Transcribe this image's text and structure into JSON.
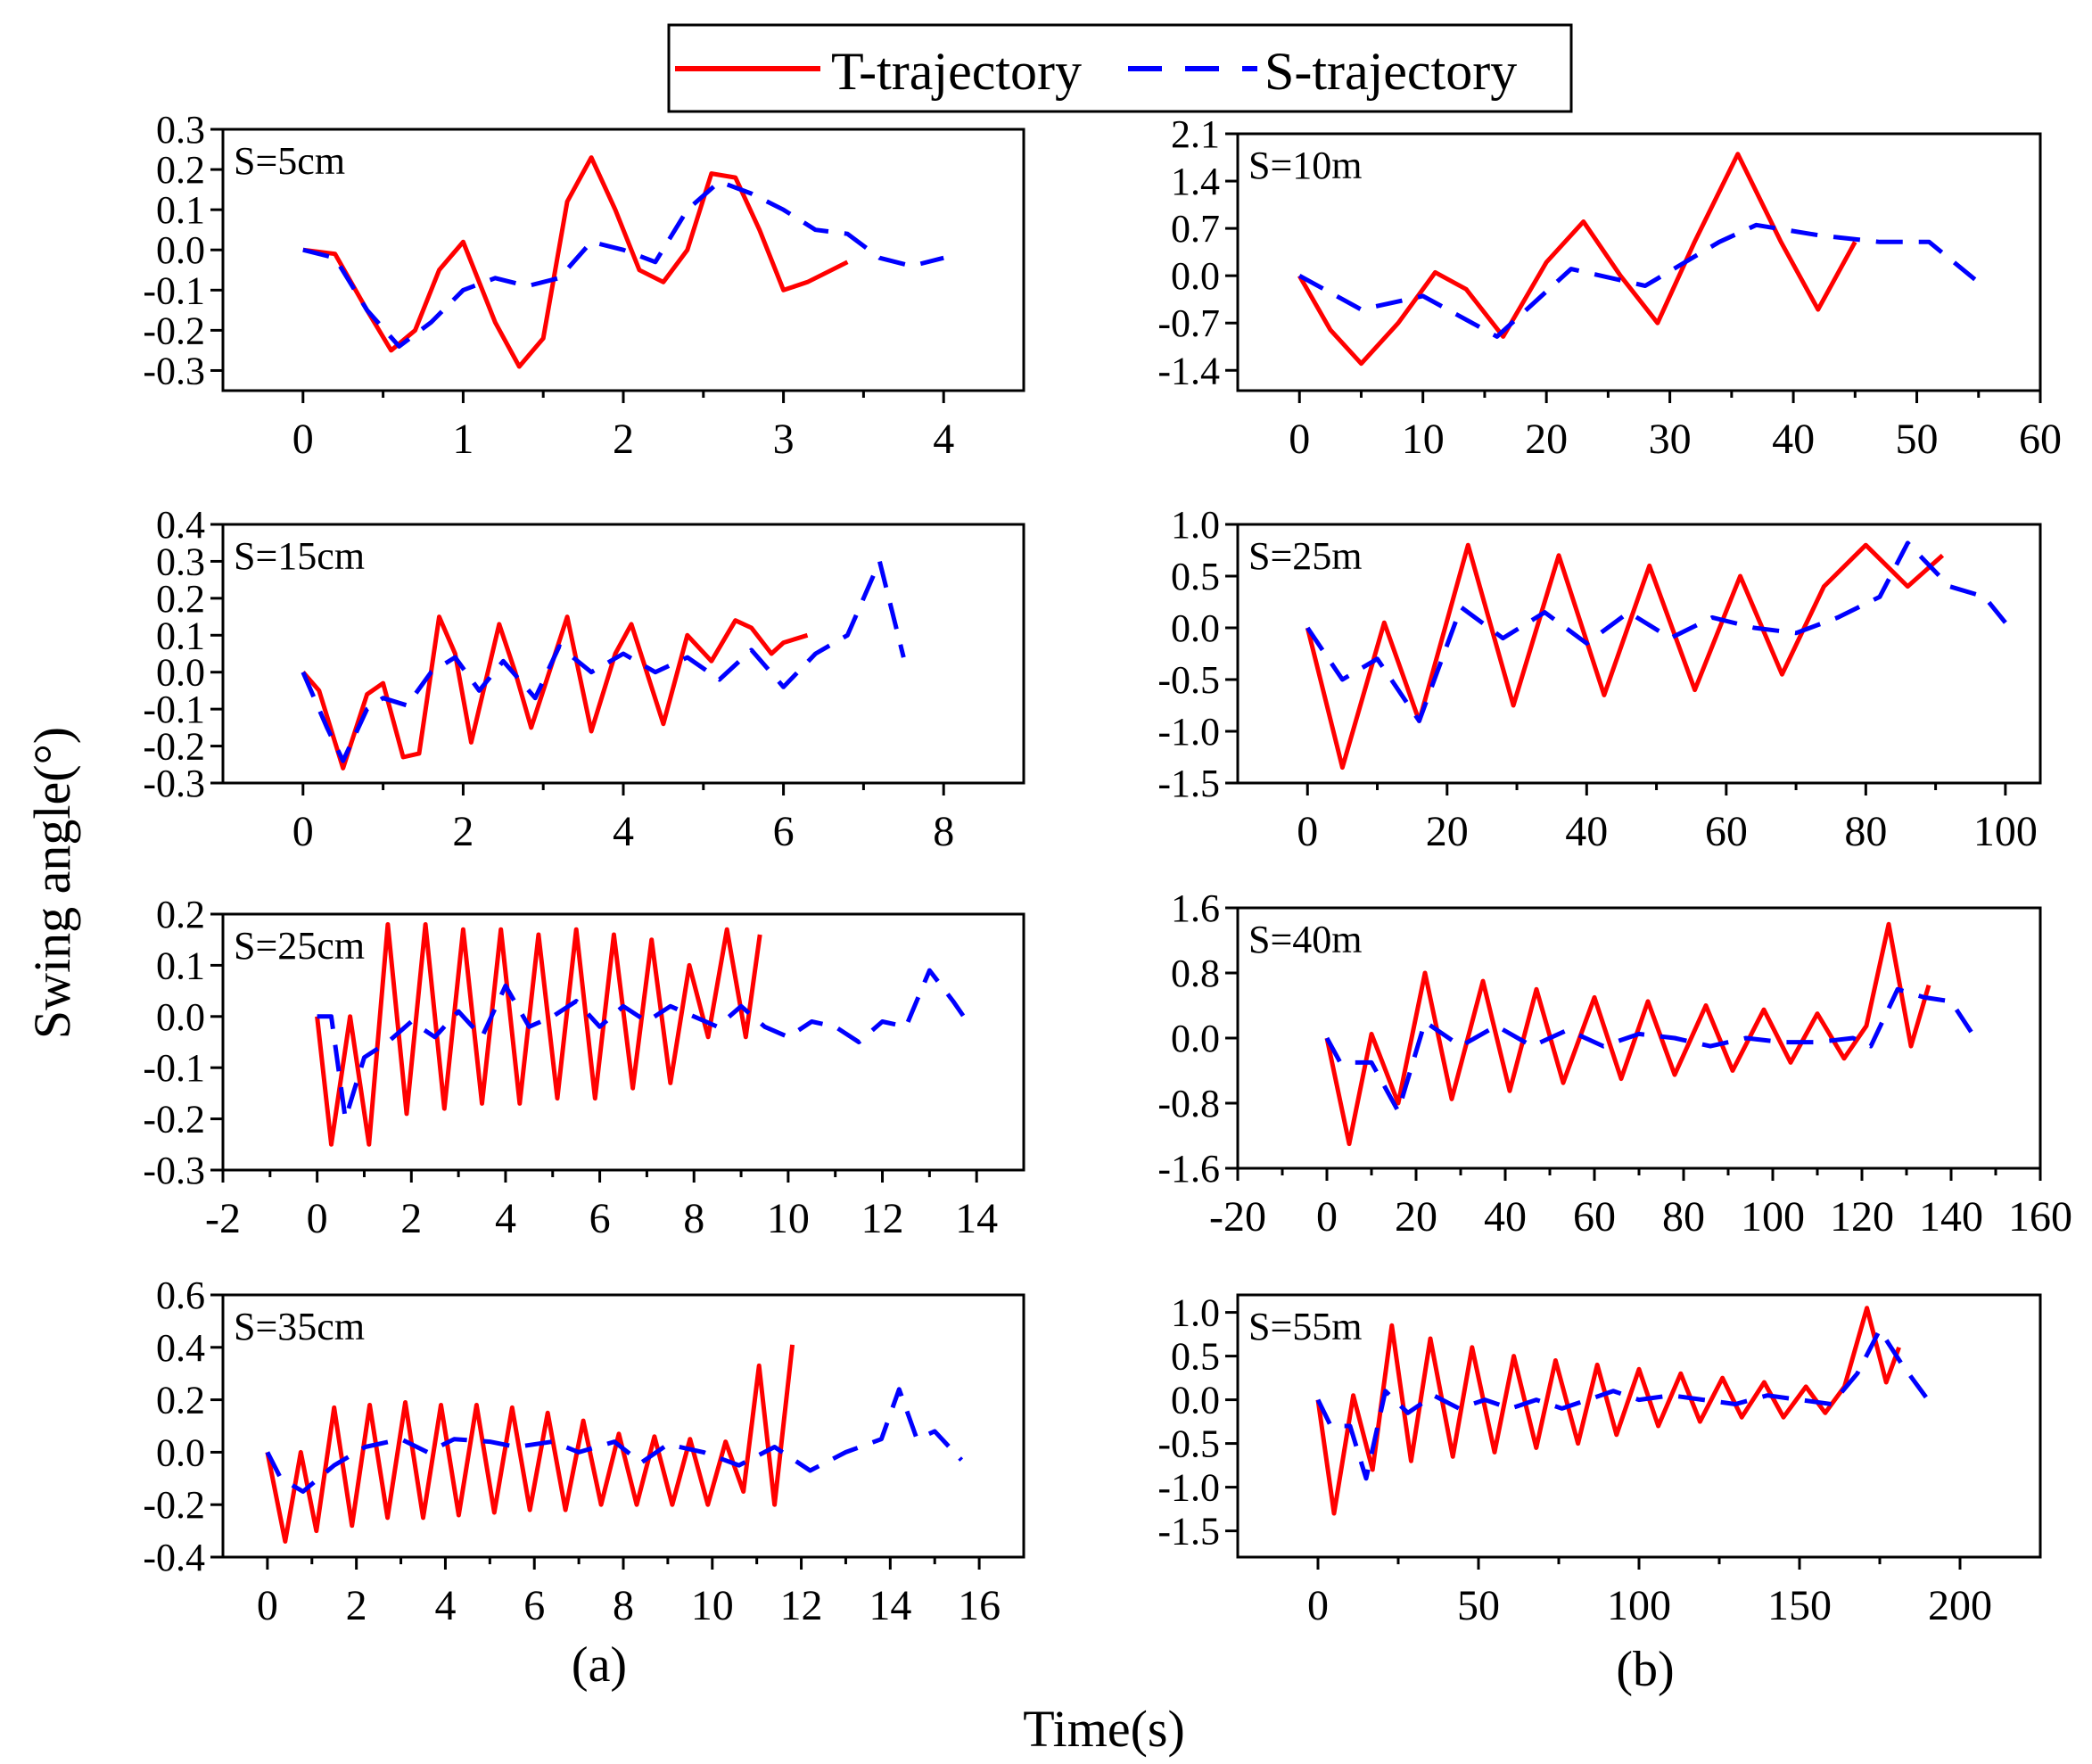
{
  "figure": {
    "ylabel": "Swing angle(°)",
    "xlabel": "Time(s)",
    "column_labels": [
      "(a)",
      "(b)"
    ],
    "legend": [
      "T-trajectory",
      "S-trajectory"
    ],
    "colors": {
      "t_series": "#ff0000",
      "s_series": "#0000ff",
      "axis": "#000000"
    }
  },
  "chart_data": [
    {
      "type": "line",
      "column": "a",
      "row": 1,
      "annotation": "S=5cm",
      "xlim": [
        -0.5,
        4.5
      ],
      "ylim": [
        -0.35,
        0.3
      ],
      "xticks": [
        "0",
        "1",
        "2",
        "3",
        "4"
      ],
      "yticks": [
        "0.3",
        "0.2",
        "0.1",
        "0.0",
        "-0.1",
        "-0.2",
        "-0.3"
      ],
      "grid": false,
      "series": [
        {
          "name": "T-trajectory",
          "x": [
            0,
            0.2,
            0.4,
            0.55,
            0.7,
            0.85,
            1.0,
            1.2,
            1.35,
            1.5,
            1.65,
            1.8,
            1.95,
            2.1,
            2.25,
            2.4,
            2.55,
            2.7,
            2.85,
            3.0,
            3.15,
            3.3,
            3.4
          ],
          "y": [
            0.0,
            -0.01,
            -0.15,
            -0.25,
            -0.2,
            -0.05,
            0.02,
            -0.18,
            -0.29,
            -0.22,
            0.12,
            0.23,
            0.1,
            -0.05,
            -0.08,
            0.0,
            0.19,
            0.18,
            0.05,
            -0.1,
            -0.08,
            -0.05,
            -0.03
          ]
        },
        {
          "name": "S-trajectory",
          "x": [
            0,
            0.2,
            0.4,
            0.6,
            0.8,
            1.0,
            1.2,
            1.4,
            1.6,
            1.8,
            2.0,
            2.2,
            2.4,
            2.6,
            2.8,
            3.0,
            3.2,
            3.4,
            3.6,
            3.8,
            4.0
          ],
          "y": [
            0.0,
            -0.02,
            -0.15,
            -0.24,
            -0.18,
            -0.1,
            -0.07,
            -0.09,
            -0.07,
            0.02,
            0.0,
            -0.03,
            0.1,
            0.17,
            0.14,
            0.1,
            0.05,
            0.04,
            -0.02,
            -0.04,
            -0.02
          ]
        }
      ]
    },
    {
      "type": "line",
      "column": "a",
      "row": 2,
      "annotation": "S=15cm",
      "xlim": [
        -1,
        9
      ],
      "ylim": [
        -0.3,
        0.4
      ],
      "xticks": [
        "0",
        "2",
        "4",
        "6",
        "8"
      ],
      "yticks": [
        "0.4",
        "0.3",
        "0.2",
        "0.1",
        "0.0",
        "-0.1",
        "-0.2",
        "-0.3"
      ],
      "grid": false,
      "series": [
        {
          "name": "T-trajectory",
          "x": [
            0,
            0.2,
            0.5,
            0.8,
            1.0,
            1.25,
            1.45,
            1.7,
            1.9,
            2.1,
            2.45,
            2.65,
            2.85,
            3.3,
            3.6,
            3.9,
            4.1,
            4.5,
            4.8,
            5.1,
            5.4,
            5.6,
            5.85,
            6.0,
            6.3
          ],
          "y": [
            0.0,
            -0.05,
            -0.26,
            -0.06,
            -0.03,
            -0.23,
            -0.22,
            0.15,
            0.05,
            -0.19,
            0.13,
            0.0,
            -0.15,
            0.15,
            -0.16,
            0.05,
            0.13,
            -0.14,
            0.1,
            0.03,
            0.14,
            0.12,
            0.05,
            0.08,
            0.1
          ]
        },
        {
          "name": "S-trajectory",
          "x": [
            0,
            0.3,
            0.5,
            0.8,
            1.0,
            1.3,
            1.6,
            1.9,
            2.2,
            2.5,
            2.9,
            3.2,
            3.6,
            4.0,
            4.4,
            4.8,
            5.2,
            5.6,
            6.0,
            6.4,
            6.8,
            7.2,
            7.5
          ],
          "y": [
            0.0,
            -0.15,
            -0.24,
            -0.1,
            -0.07,
            -0.09,
            0.0,
            0.04,
            -0.05,
            0.03,
            -0.07,
            0.07,
            0.0,
            0.05,
            0.0,
            0.04,
            -0.02,
            0.06,
            -0.04,
            0.05,
            0.1,
            0.3,
            0.04
          ]
        }
      ]
    },
    {
      "type": "line",
      "column": "a",
      "row": 3,
      "annotation": "S=25cm",
      "xlim": [
        -2,
        15
      ],
      "ylim": [
        -0.3,
        0.2
      ],
      "xticks": [
        "-2",
        "0",
        "2",
        "4",
        "6",
        "8",
        "10",
        "12",
        "14"
      ],
      "yticks": [
        "0.2",
        "0.1",
        "0.0",
        "-0.1",
        "-0.2",
        "-0.3"
      ],
      "grid": false,
      "series": [
        {
          "name": "T-trajectory",
          "x": [
            0,
            0.3,
            0.7,
            1.1,
            1.5,
            1.9,
            2.3,
            2.7,
            3.1,
            3.5,
            3.9,
            4.3,
            4.7,
            5.1,
            5.5,
            5.9,
            6.3,
            6.7,
            7.1,
            7.5,
            7.9,
            8.3,
            8.7,
            9.1,
            9.4
          ],
          "y": [
            0.0,
            -0.25,
            0.0,
            -0.25,
            0.18,
            -0.19,
            0.18,
            -0.18,
            0.17,
            -0.17,
            0.17,
            -0.17,
            0.16,
            -0.16,
            0.17,
            -0.16,
            0.16,
            -0.14,
            0.15,
            -0.13,
            0.1,
            -0.04,
            0.17,
            -0.04,
            0.16
          ]
        },
        {
          "name": "S-trajectory",
          "x": [
            0,
            0.3,
            0.6,
            1.0,
            1.5,
            2.0,
            2.5,
            3.0,
            3.5,
            4.0,
            4.5,
            5.0,
            5.5,
            6.0,
            6.5,
            7.0,
            7.5,
            8.0,
            8.5,
            9.0,
            9.5,
            10.0,
            10.5,
            11.0,
            11.5,
            12.0,
            12.5,
            13.0,
            13.5,
            13.8
          ],
          "y": [
            0.0,
            0.0,
            -0.2,
            -0.08,
            -0.05,
            -0.01,
            -0.04,
            0.01,
            -0.04,
            0.06,
            -0.02,
            0.0,
            0.03,
            -0.02,
            0.02,
            -0.01,
            0.02,
            0.0,
            -0.02,
            0.02,
            -0.02,
            -0.04,
            -0.01,
            -0.02,
            -0.05,
            -0.01,
            -0.02,
            0.09,
            0.03,
            -0.01
          ]
        }
      ]
    },
    {
      "type": "line",
      "column": "a",
      "row": 4,
      "annotation": "S=35cm",
      "xlim": [
        -1,
        17
      ],
      "ylim": [
        -0.4,
        0.6
      ],
      "xticks": [
        "0",
        "2",
        "4",
        "6",
        "8",
        "10",
        "12",
        "14",
        "16"
      ],
      "yticks": [
        "0.6",
        "0.4",
        "0.2",
        "0.0",
        "-0.2",
        "-0.4"
      ],
      "grid": false,
      "series": [
        {
          "name": "T-trajectory",
          "x": [
            0,
            0.4,
            0.75,
            1.1,
            1.5,
            1.9,
            2.3,
            2.7,
            3.1,
            3.5,
            3.9,
            4.3,
            4.7,
            5.1,
            5.5,
            5.9,
            6.3,
            6.7,
            7.1,
            7.5,
            7.9,
            8.3,
            8.7,
            9.1,
            9.5,
            9.9,
            10.3,
            10.7,
            11.05,
            11.4,
            11.8
          ],
          "y": [
            0.0,
            -0.34,
            0.0,
            -0.3,
            0.17,
            -0.28,
            0.18,
            -0.25,
            0.19,
            -0.25,
            0.18,
            -0.24,
            0.18,
            -0.23,
            0.17,
            -0.22,
            0.15,
            -0.22,
            0.12,
            -0.2,
            0.07,
            -0.2,
            0.06,
            -0.2,
            0.05,
            -0.2,
            0.04,
            -0.15,
            0.33,
            -0.2,
            0.41
          ]
        },
        {
          "name": "S-trajectory",
          "x": [
            0,
            0.3,
            0.8,
            1.5,
            2.2,
            3.0,
            3.6,
            4.2,
            5.0,
            5.6,
            6.4,
            7.0,
            7.8,
            8.4,
            9.0,
            9.8,
            10.6,
            11.4,
            12.2,
            13.0,
            13.8,
            14.2,
            14.6,
            15.0,
            15.6
          ],
          "y": [
            0.0,
            -0.1,
            -0.15,
            -0.05,
            0.02,
            0.05,
            0.0,
            0.05,
            0.04,
            0.02,
            0.04,
            0.0,
            0.04,
            -0.04,
            0.03,
            0.0,
            -0.05,
            0.02,
            -0.07,
            0.0,
            0.05,
            0.24,
            0.05,
            0.08,
            -0.03
          ]
        }
      ]
    },
    {
      "type": "line",
      "column": "b",
      "row": 1,
      "annotation": "S=10m",
      "xlim": [
        -5,
        60
      ],
      "ylim": [
        -1.7,
        2.1
      ],
      "xticks": [
        "0",
        "10",
        "20",
        "30",
        "40",
        "50",
        "60"
      ],
      "yticks": [
        "2.1",
        "1.4",
        "0.7",
        "0.0",
        "-0.7",
        "-1.4"
      ],
      "grid": false,
      "series": [
        {
          "name": "T-trajectory",
          "x": [
            0,
            2.5,
            5,
            8,
            11,
            13.5,
            16.5,
            20,
            23,
            26,
            29,
            32,
            35.5,
            39,
            42,
            45
          ],
          "y": [
            0.0,
            -0.8,
            -1.3,
            -0.7,
            0.05,
            -0.2,
            -0.9,
            0.2,
            0.8,
            0.0,
            -0.7,
            0.5,
            1.8,
            0.5,
            -0.5,
            0.5
          ]
        },
        {
          "name": "S-trajectory",
          "x": [
            0,
            5,
            10,
            16,
            22,
            28,
            34,
            37,
            42,
            47,
            51,
            55
          ],
          "y": [
            0.0,
            -0.5,
            -0.3,
            -0.9,
            0.1,
            -0.15,
            0.5,
            0.75,
            0.6,
            0.5,
            0.5,
            -0.1
          ]
        }
      ]
    },
    {
      "type": "line",
      "column": "b",
      "row": 2,
      "annotation": "S=25m",
      "xlim": [
        -10,
        105
      ],
      "ylim": [
        -1.5,
        1.0
      ],
      "xticks": [
        "0",
        "20",
        "40",
        "60",
        "80",
        "100"
      ],
      "yticks": [
        "1.0",
        "0.5",
        "0.0",
        "-0.5",
        "-1.0",
        "-1.5"
      ],
      "grid": false,
      "series": [
        {
          "name": "T-trajectory",
          "x": [
            0,
            5,
            11,
            16,
            23,
            29.5,
            36,
            42.5,
            49,
            55.5,
            62,
            68,
            74,
            80,
            86,
            91
          ],
          "y": [
            0.0,
            -1.35,
            0.05,
            -0.9,
            0.8,
            -0.75,
            0.7,
            -0.65,
            0.6,
            -0.6,
            0.5,
            -0.45,
            0.4,
            0.8,
            0.4,
            0.7
          ]
        },
        {
          "name": "S-trajectory",
          "x": [
            0,
            5,
            10,
            16,
            22,
            28,
            34,
            40,
            46,
            52,
            58,
            64,
            70,
            76,
            82,
            86,
            92,
            97,
            100
          ],
          "y": [
            0.0,
            -0.5,
            -0.3,
            -0.9,
            0.2,
            -0.1,
            0.15,
            -0.15,
            0.15,
            -0.1,
            0.1,
            0.0,
            -0.05,
            0.1,
            0.3,
            0.82,
            0.4,
            0.3,
            0.05
          ]
        }
      ]
    },
    {
      "type": "line",
      "column": "b",
      "row": 3,
      "annotation": "S=40m",
      "xlim": [
        -20,
        160
      ],
      "ylim": [
        -1.6,
        1.6
      ],
      "xticks": [
        "-20",
        "0",
        "20",
        "40",
        "60",
        "80",
        "100",
        "120",
        "140",
        "160"
      ],
      "yticks": [
        "1.6",
        "0.8",
        "0.0",
        "-0.8",
        "-1.6"
      ],
      "grid": false,
      "series": [
        {
          "name": "T-trajectory",
          "x": [
            0,
            5,
            10,
            16,
            22,
            28,
            35,
            41,
            47,
            53,
            60,
            66,
            72,
            78,
            85,
            91,
            98,
            104,
            110,
            116,
            121,
            126,
            131,
            135
          ],
          "y": [
            0.0,
            -1.3,
            0.05,
            -0.8,
            0.8,
            -0.75,
            0.7,
            -0.65,
            0.6,
            -0.55,
            0.5,
            -0.5,
            0.45,
            -0.45,
            0.4,
            -0.4,
            0.35,
            -0.3,
            0.3,
            -0.25,
            0.15,
            1.4,
            -0.1,
            0.65
          ]
        },
        {
          "name": "S-trajectory",
          "x": [
            0,
            3,
            10,
            16,
            22,
            30,
            38,
            46,
            54,
            62,
            70,
            78,
            86,
            94,
            102,
            110,
            118,
            122,
            128,
            134,
            140,
            146
          ],
          "y": [
            0.0,
            -0.3,
            -0.3,
            -0.9,
            0.2,
            -0.1,
            0.15,
            -0.1,
            0.1,
            -0.1,
            0.05,
            0.0,
            -0.1,
            0.0,
            -0.05,
            -0.05,
            0.0,
            -0.1,
            0.6,
            0.5,
            0.45,
            -0.05
          ]
        }
      ]
    },
    {
      "type": "line",
      "column": "b",
      "row": 4,
      "annotation": "S=55m",
      "xlim": [
        -25,
        225
      ],
      "ylim": [
        -1.8,
        1.2
      ],
      "xticks": [
        "0",
        "50",
        "100",
        "150",
        "200"
      ],
      "yticks": [
        "1.0",
        "0.5",
        "0.0",
        "-0.5",
        "-1.0",
        "-1.5"
      ],
      "grid": false,
      "series": [
        {
          "name": "T-trajectory",
          "x": [
            0,
            5,
            11,
            17,
            23,
            29,
            35,
            42,
            48,
            55,
            61,
            68,
            74,
            81,
            87,
            93,
            100,
            106,
            113,
            119,
            126,
            132,
            139,
            145,
            152,
            158,
            164,
            171,
            177,
            181
          ],
          "y": [
            0.0,
            -1.3,
            0.05,
            -0.8,
            0.85,
            -0.7,
            0.7,
            -0.65,
            0.6,
            -0.6,
            0.5,
            -0.55,
            0.45,
            -0.5,
            0.4,
            -0.4,
            0.35,
            -0.3,
            0.3,
            -0.25,
            0.25,
            -0.2,
            0.2,
            -0.2,
            0.15,
            -0.15,
            0.15,
            1.05,
            0.2,
            0.6
          ]
        },
        {
          "name": "S-trajectory",
          "x": [
            0,
            4,
            10,
            15,
            21,
            28,
            36,
            44,
            52,
            60,
            68,
            76,
            84,
            92,
            100,
            110,
            120,
            130,
            140,
            150,
            160,
            168,
            175,
            182,
            190
          ],
          "y": [
            0.0,
            -0.3,
            -0.3,
            -0.9,
            0.1,
            -0.15,
            0.05,
            -0.1,
            0.0,
            -0.1,
            0.0,
            -0.1,
            0.0,
            0.1,
            0.0,
            0.05,
            0.0,
            -0.05,
            0.05,
            0.0,
            -0.05,
            0.3,
            0.8,
            0.4,
            0.0
          ]
        }
      ]
    }
  ]
}
